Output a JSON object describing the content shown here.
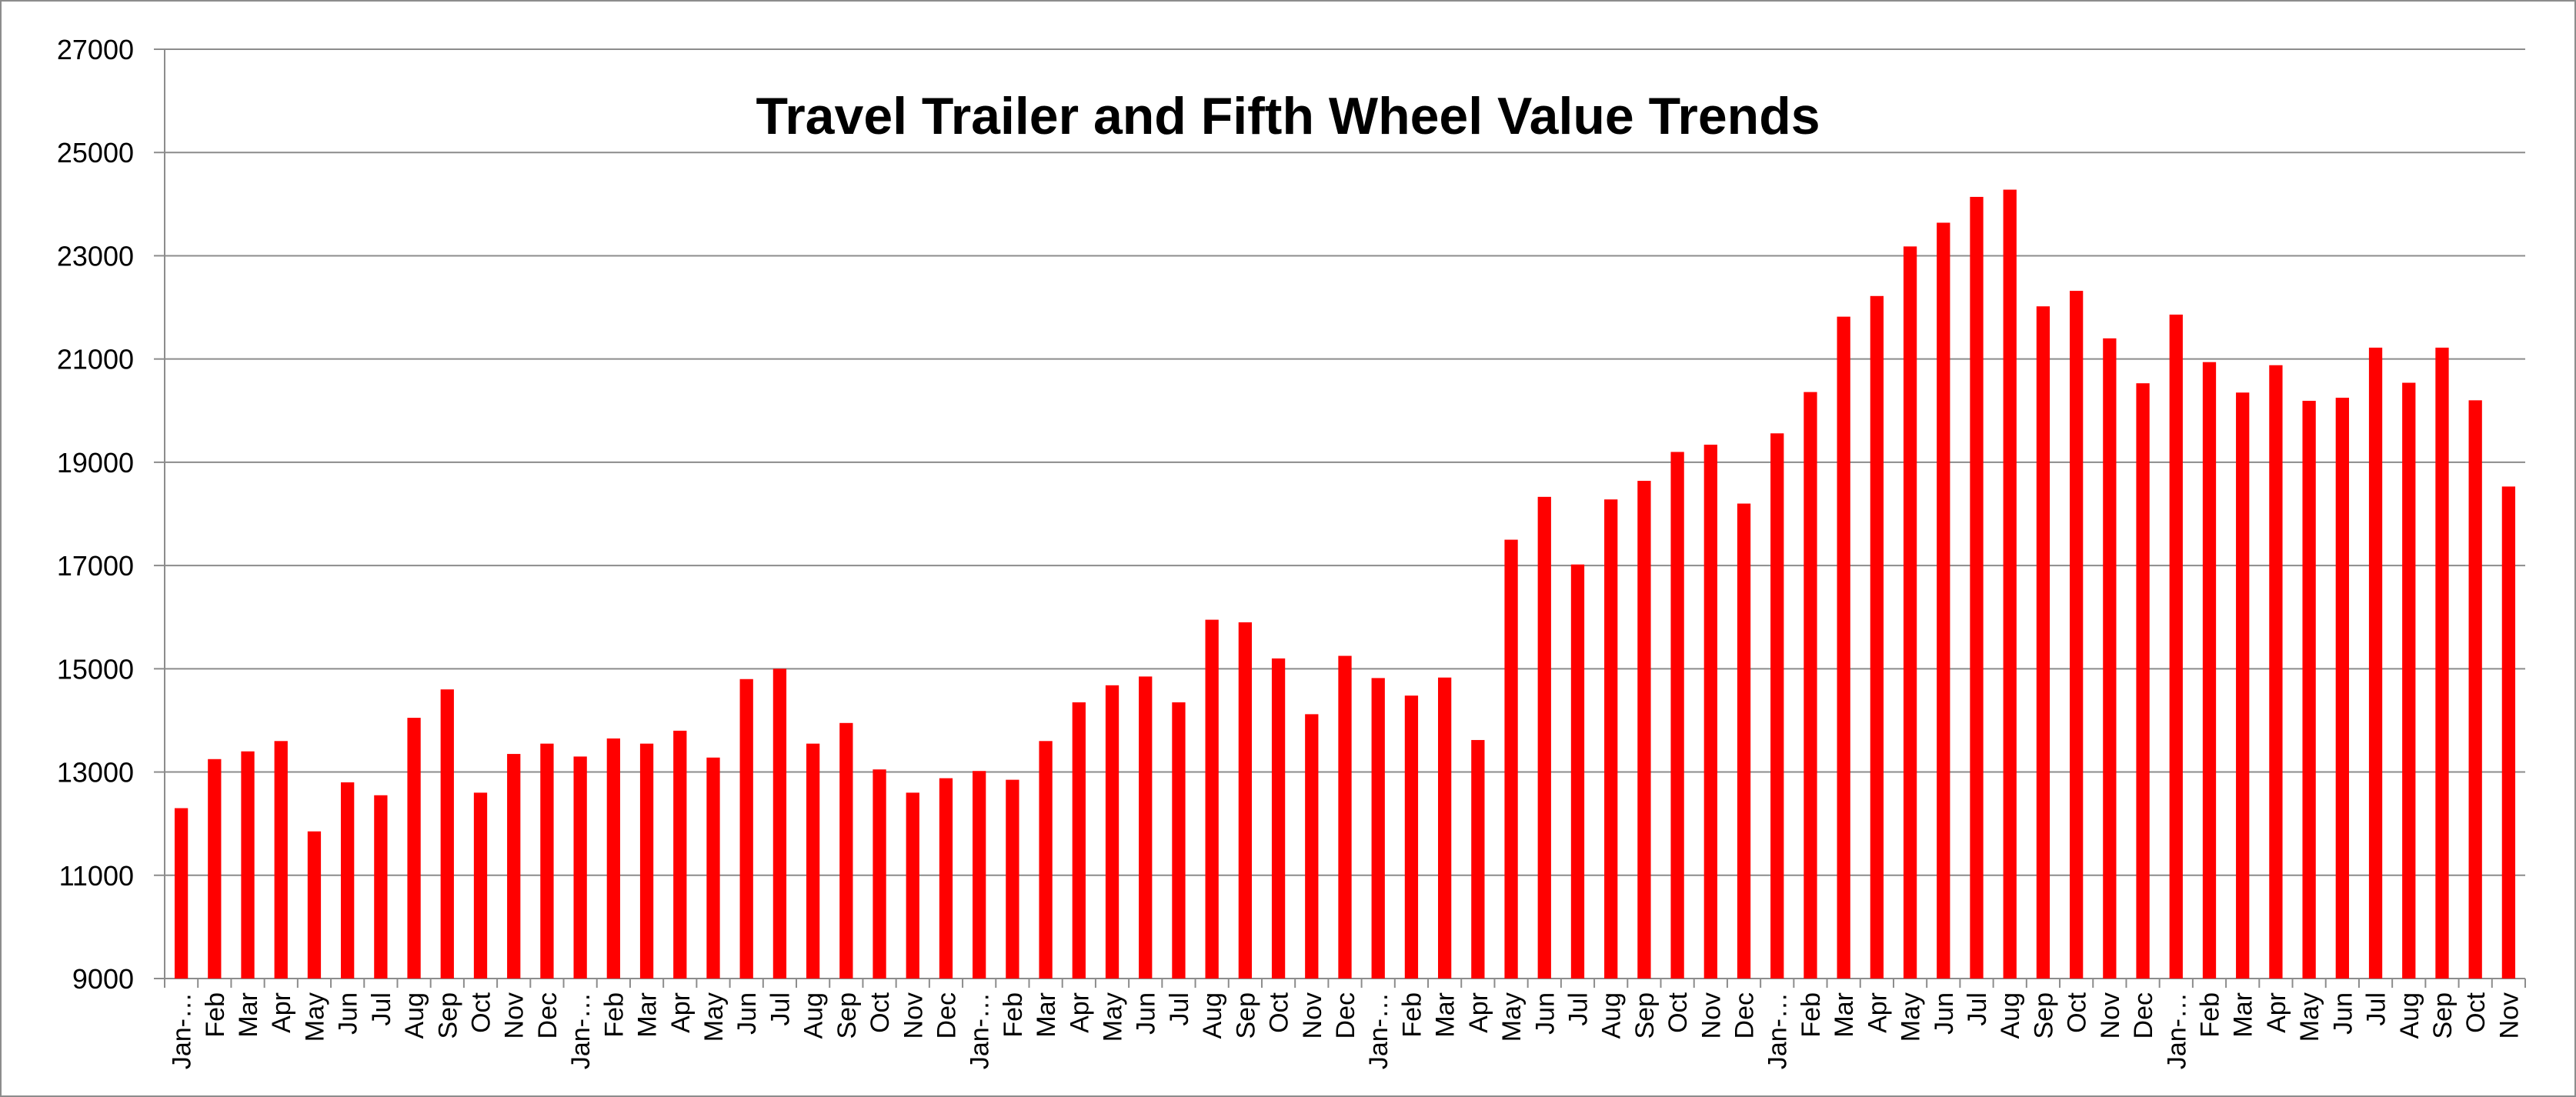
{
  "chart_data": {
    "type": "bar",
    "title": "Travel Trailer and Fifth Wheel Value Trends",
    "xlabel": "",
    "ylabel": "",
    "ylim": [
      9000,
      27000
    ],
    "yticks": [
      9000,
      11000,
      13000,
      15000,
      17000,
      19000,
      21000,
      23000,
      25000,
      27000
    ],
    "grid": true,
    "legend": "none",
    "bar_color": "#ff0000",
    "categories": [
      "Jan-…",
      "Feb",
      "Mar",
      "Apr",
      "May",
      "Jun",
      "Jul",
      "Aug",
      "Sep",
      "Oct",
      "Nov",
      "Dec",
      "Jan-…",
      "Feb",
      "Mar",
      "Apr",
      "May",
      "Jun",
      "Jul",
      "Aug",
      "Sep",
      "Oct",
      "Nov",
      "Dec",
      "Jan-…",
      "Feb",
      "Mar",
      "Apr",
      "May",
      "Jun",
      "Jul",
      "Aug",
      "Sep",
      "Oct",
      "Nov",
      "Dec",
      "Jan-…",
      "Feb",
      "Mar",
      "Apr",
      "May",
      "Jun",
      "Jul",
      "Aug",
      "Sep",
      "Oct",
      "Nov",
      "Dec",
      "Jan-…",
      "Feb",
      "Mar",
      "Apr",
      "May",
      "Jun",
      "Jul",
      "Aug",
      "Sep",
      "Oct",
      "Nov",
      "Dec",
      "Jan-…",
      "Feb",
      "Mar",
      "Apr",
      "May",
      "Jun",
      "Jul",
      "Aug",
      "Sep",
      "Oct",
      "Nov"
    ],
    "values": [
      12300,
      13250,
      13400,
      13600,
      11850,
      12800,
      12550,
      14050,
      14600,
      12600,
      13350,
      13550,
      13300,
      13650,
      13550,
      13800,
      13280,
      14800,
      15000,
      13550,
      13950,
      13050,
      12600,
      12880,
      13020,
      12850,
      13600,
      14350,
      14680,
      14850,
      14350,
      15950,
      15900,
      15200,
      14120,
      15250,
      14820,
      14480,
      14830,
      13620,
      17500,
      18330,
      17020,
      18280,
      18640,
      19200,
      19340,
      18200,
      19560,
      20360,
      21820,
      22220,
      23180,
      23640,
      24140,
      24280,
      22020,
      22320,
      21400,
      20530,
      21860,
      20940,
      20350,
      20880,
      20190,
      20250,
      21220,
      20540,
      21220,
      20200,
      18530
    ]
  }
}
